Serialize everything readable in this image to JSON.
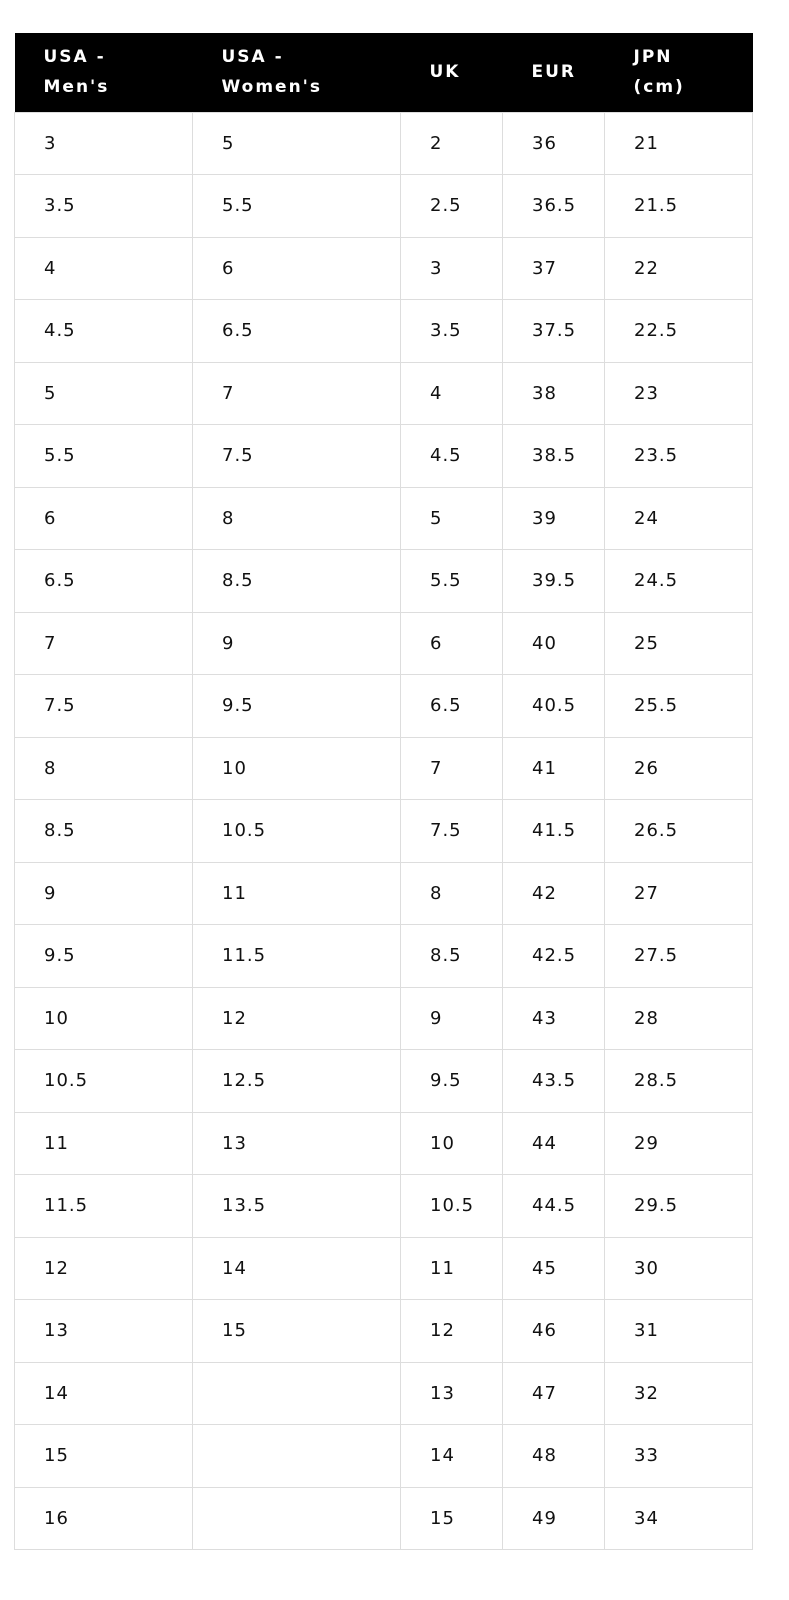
{
  "table": {
    "headers": [
      "USA -\nMen's",
      "USA -\nWomen's",
      "UK",
      "EUR",
      "JPN\n(cm)"
    ],
    "rows": [
      [
        "3",
        "5",
        "2",
        "36",
        "21"
      ],
      [
        "3.5",
        "5.5",
        "2.5",
        "36.5",
        "21.5"
      ],
      [
        "4",
        "6",
        "3",
        "37",
        "22"
      ],
      [
        "4.5",
        "6.5",
        "3.5",
        "37.5",
        "22.5"
      ],
      [
        "5",
        "7",
        "4",
        "38",
        "23"
      ],
      [
        "5.5",
        "7.5",
        "4.5",
        "38.5",
        "23.5"
      ],
      [
        "6",
        "8",
        "5",
        "39",
        "24"
      ],
      [
        "6.5",
        "8.5",
        "5.5",
        "39.5",
        "24.5"
      ],
      [
        "7",
        "9",
        "6",
        "40",
        "25"
      ],
      [
        "7.5",
        "9.5",
        "6.5",
        "40.5",
        "25.5"
      ],
      [
        "8",
        "10",
        "7",
        "41",
        "26"
      ],
      [
        "8.5",
        "10.5",
        "7.5",
        "41.5",
        "26.5"
      ],
      [
        "9",
        "11",
        "8",
        "42",
        "27"
      ],
      [
        "9.5",
        "11.5",
        "8.5",
        "42.5",
        "27.5"
      ],
      [
        "10",
        "12",
        "9",
        "43",
        "28"
      ],
      [
        "10.5",
        "12.5",
        "9.5",
        "43.5",
        "28.5"
      ],
      [
        "11",
        "13",
        "10",
        "44",
        "29"
      ],
      [
        "11.5",
        "13.5",
        "10.5",
        "44.5",
        "29.5"
      ],
      [
        "12",
        "14",
        "11",
        "45",
        "30"
      ],
      [
        "13",
        "15",
        "12",
        "46",
        "31"
      ],
      [
        "14",
        null,
        "13",
        "47",
        "32"
      ],
      [
        "15",
        null,
        "14",
        "48",
        "33"
      ],
      [
        "16",
        null,
        "15",
        "49",
        "34"
      ]
    ]
  }
}
